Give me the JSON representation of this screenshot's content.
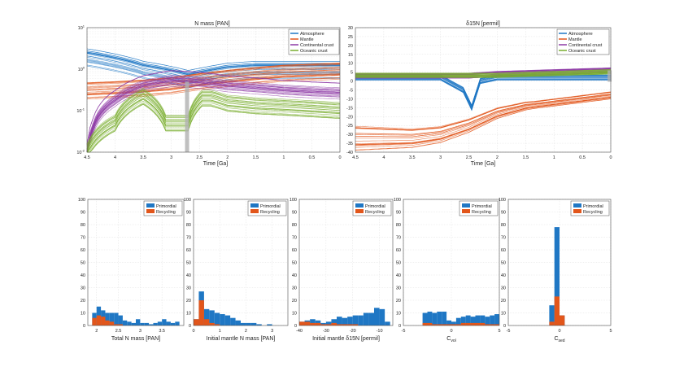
{
  "colors": {
    "atmosphere": "#1f77c4",
    "mantle": "#e2561b",
    "continental_crust": "#8e3aa6",
    "oceanic_crust": "#79ad2f",
    "primordial": "#1f77c4",
    "recycling": "#e2561b",
    "grid": "#d9d9d9",
    "axis": "#4d4d4d",
    "marker": "#b0b0b0"
  },
  "chart_data": [
    {
      "id": "n-mass",
      "type": "line",
      "title": "N mass [PAN]",
      "xlabel": "Time [Ga]",
      "ylabel": "",
      "xlim": [
        4.5,
        0
      ],
      "ylim": [
        0.01,
        10
      ],
      "yscale": "log",
      "xticks": [
        "4.5",
        "4",
        "3.5",
        "3",
        "2.5",
        "2",
        "1.5",
        "1",
        "0.5",
        "0"
      ],
      "yticks": [
        "10^-2",
        "10^-1",
        "10^0",
        "10^1"
      ],
      "legend": [
        "Atmosphere",
        "Mantle",
        "Continental crust",
        "Oceanic crust"
      ],
      "legend_position": "top-right",
      "grid": true,
      "series": [
        {
          "name": "Atmosphere",
          "x": [
            4.5,
            4.0,
            3.5,
            3.0,
            2.7,
            2.45,
            2.0,
            1.5,
            1.0,
            0.5,
            0.0
          ],
          "values": [
            2.0,
            1.5,
            1.0,
            0.75,
            0.6,
            0.7,
            0.9,
            1.0,
            1.0,
            1.0,
            1.0
          ]
        },
        {
          "name": "Mantle",
          "x": [
            4.5,
            4.0,
            3.5,
            3.0,
            2.5,
            2.0,
            1.5,
            1.0,
            0.5,
            0.0
          ],
          "values": [
            0.3,
            0.32,
            0.35,
            0.4,
            0.5,
            0.6,
            0.7,
            0.8,
            0.85,
            0.9
          ]
        },
        {
          "name": "Continental crust",
          "x": [
            4.5,
            4.4,
            4.0,
            3.5,
            3.0,
            2.5,
            2.0,
            1.5,
            1.0,
            0.5,
            0.0
          ],
          "values": [
            0.01,
            0.04,
            0.2,
            0.45,
            0.6,
            0.55,
            0.45,
            0.4,
            0.35,
            0.32,
            0.3
          ]
        },
        {
          "name": "Oceanic crust",
          "x": [
            4.5,
            4.0,
            3.5,
            3.1,
            2.7,
            2.45,
            2.3,
            2.0,
            1.5,
            1.0,
            0.5,
            0.0
          ],
          "values": [
            0.01,
            0.05,
            0.22,
            0.05,
            0.05,
            0.2,
            0.2,
            0.15,
            0.13,
            0.12,
            0.11,
            0.1
          ]
        }
      ]
    },
    {
      "id": "d15n",
      "type": "line",
      "title": "δ15N [permil]",
      "xlabel": "Time [Ga]",
      "ylabel": "",
      "xlim": [
        4.5,
        0
      ],
      "ylim": [
        -40,
        30
      ],
      "xticks": [
        "4.5",
        "4",
        "3.5",
        "3",
        "2.5",
        "2",
        "1.5",
        "1",
        "0.5",
        "0"
      ],
      "yticks": [
        "30",
        "25",
        "20",
        "15",
        "10",
        "5",
        "0",
        "-5",
        "-10",
        "-15",
        "-20",
        "-25",
        "-30",
        "-35",
        "-40"
      ],
      "legend": [
        "Atmosphere",
        "Mantle",
        "Continental crust",
        "Oceanic crust"
      ],
      "legend_position": "top-right",
      "grid": true,
      "series": [
        {
          "name": "Atmosphere",
          "x": [
            4.5,
            4.0,
            3.5,
            3.0,
            2.6,
            2.45,
            2.3,
            2.0,
            1.0,
            0.0
          ],
          "values": [
            2,
            2,
            2,
            2,
            -5,
            -15,
            0,
            2,
            2,
            2
          ]
        },
        {
          "name": "Mantle",
          "x": [
            4.5,
            3.5,
            3.0,
            2.5,
            2.0,
            1.5,
            1.0,
            0.5,
            0.0
          ],
          "values": [
            -32,
            -32,
            -30,
            -25,
            -18,
            -14,
            -12,
            -10,
            -8
          ]
        },
        {
          "name": "Continental crust",
          "x": [
            4.5,
            3.5,
            2.5,
            2.0,
            1.0,
            0.0
          ],
          "values": [
            3,
            3,
            3,
            4,
            5,
            6
          ]
        },
        {
          "name": "Oceanic crust",
          "x": [
            4.5,
            4.0,
            3.5,
            3.0,
            2.5,
            2.0,
            1.0,
            0.0
          ],
          "values": [
            3,
            3,
            3,
            3,
            3,
            3,
            4,
            5
          ]
        }
      ]
    },
    {
      "id": "hist-total-n",
      "type": "bar",
      "xlabel": "Total N mass [PAN]",
      "xlim": [
        1.8,
        4
      ],
      "ylim": [
        0,
        100
      ],
      "xticks": [
        "2",
        "2.5",
        "3",
        "3.5"
      ],
      "yticks": [
        "0",
        "10",
        "20",
        "30",
        "40",
        "50",
        "60",
        "70",
        "80",
        "90",
        "100"
      ],
      "legend": [
        "Primordial",
        "Recycling"
      ],
      "legend_position": "top-right",
      "bin_edges": [
        1.9,
        2.0,
        2.1,
        2.2,
        2.3,
        2.4,
        2.5,
        2.6,
        2.7,
        2.8,
        2.9,
        3.0,
        3.1,
        3.2,
        3.3,
        3.4,
        3.5,
        3.6,
        3.7,
        3.8,
        3.9
      ],
      "series": [
        {
          "name": "Primordial",
          "values": [
            10,
            15,
            12,
            10,
            10,
            10,
            8,
            4,
            3,
            2,
            5,
            2,
            2,
            1,
            2,
            3,
            5,
            3,
            2,
            3
          ]
        },
        {
          "name": "Recycling",
          "values": [
            6,
            8,
            7,
            4,
            3,
            1,
            1,
            0,
            0,
            0,
            0,
            0,
            0,
            0,
            0,
            0,
            0,
            0,
            0,
            0
          ]
        }
      ]
    },
    {
      "id": "hist-initial-mantle",
      "type": "bar",
      "xlabel": "Initial mantle N mass [PAN]",
      "xlim": [
        0,
        3.6
      ],
      "ylim": [
        0,
        100
      ],
      "xticks": [
        "0",
        "1",
        "2",
        "3"
      ],
      "yticks": [
        "0",
        "10",
        "20",
        "30",
        "40",
        "50",
        "60",
        "70",
        "80",
        "90",
        "100"
      ],
      "legend": [
        "Primordial",
        "Recycling"
      ],
      "legend_position": "top-right",
      "bin_edges": [
        0.0,
        0.2,
        0.4,
        0.6,
        0.8,
        1.0,
        1.2,
        1.4,
        1.6,
        1.8,
        2.0,
        2.2,
        2.4,
        2.6,
        2.8,
        3.0
      ],
      "series": [
        {
          "name": "Primordial",
          "values": [
            5,
            27,
            13,
            12,
            10,
            9,
            8,
            6,
            4,
            2,
            2,
            2,
            1,
            0,
            1
          ]
        },
        {
          "name": "Recycling",
          "values": [
            5,
            20,
            5,
            2,
            1,
            0,
            0,
            0,
            0,
            0,
            0,
            0,
            0,
            0,
            0
          ]
        }
      ]
    },
    {
      "id": "hist-initial-d15n",
      "type": "bar",
      "xlabel": "Initial mantle δ15N [permil]",
      "xlim": [
        -40,
        -5
      ],
      "ylim": [
        0,
        100
      ],
      "xticks": [
        "-40",
        "-30",
        "-20",
        "-10"
      ],
      "yticks": [
        "0",
        "10",
        "20",
        "30",
        "40",
        "50",
        "60",
        "70",
        "80",
        "90",
        "100"
      ],
      "legend": [
        "Primordial",
        "Recycling"
      ],
      "legend_position": "top-right",
      "bin_edges": [
        -40,
        -38,
        -36,
        -34,
        -32,
        -30,
        -28,
        -26,
        -24,
        -22,
        -20,
        -18,
        -16,
        -14,
        -12,
        -10,
        -8,
        -6
      ],
      "series": [
        {
          "name": "Primordial",
          "values": [
            3,
            4,
            5,
            4,
            2,
            3,
            5,
            7,
            6,
            7,
            8,
            8,
            10,
            10,
            14,
            13,
            3
          ]
        },
        {
          "name": "Recycling",
          "values": [
            3,
            3,
            2,
            2,
            1,
            1,
            2,
            1,
            1,
            1,
            1,
            0,
            0,
            0,
            0,
            0,
            0
          ]
        }
      ]
    },
    {
      "id": "hist-cvol",
      "type": "bar",
      "xlabel": "C_vol",
      "xlim": [
        -5,
        5
      ],
      "ylim": [
        0,
        100
      ],
      "xticks": [
        "-5",
        "0",
        "5"
      ],
      "yticks": [
        "0",
        "10",
        "20",
        "30",
        "40",
        "50",
        "60",
        "70",
        "80",
        "90",
        "100"
      ],
      "legend": [
        "Primordial",
        "Recycling"
      ],
      "legend_position": "top-right",
      "bin_edges": [
        -3.0,
        -2.5,
        -2.0,
        -1.5,
        -1.0,
        -0.5,
        0.0,
        0.5,
        1.0,
        1.5,
        2.0,
        2.5,
        3.0,
        3.5,
        4.0,
        4.5,
        5.0
      ],
      "series": [
        {
          "name": "Primordial",
          "values": [
            10,
            11,
            10,
            11,
            11,
            4,
            3,
            6,
            7,
            8,
            7,
            8,
            8,
            7,
            8,
            9
          ]
        },
        {
          "name": "Recycling",
          "values": [
            2,
            2,
            1,
            1,
            1,
            1,
            1,
            1,
            2,
            2,
            2,
            2,
            2,
            1,
            1,
            1
          ]
        }
      ]
    },
    {
      "id": "hist-csed",
      "type": "bar",
      "xlabel": "C_sed",
      "xlim": [
        -5,
        5
      ],
      "ylim": [
        0,
        100
      ],
      "xticks": [
        "-5",
        "0",
        "5"
      ],
      "yticks": [
        "0",
        "10",
        "20",
        "30",
        "40",
        "50",
        "60",
        "70",
        "80",
        "90",
        "100"
      ],
      "legend": [
        "Primordial",
        "Recycling"
      ],
      "legend_position": "top-right",
      "bin_edges": [
        -1.0,
        -0.5,
        0.0,
        0.5,
        1.0
      ],
      "series": [
        {
          "name": "Primordial",
          "values": [
            16,
            78,
            8,
            0
          ]
        },
        {
          "name": "Recycling",
          "values": [
            3,
            23,
            8,
            0
          ]
        }
      ]
    }
  ]
}
